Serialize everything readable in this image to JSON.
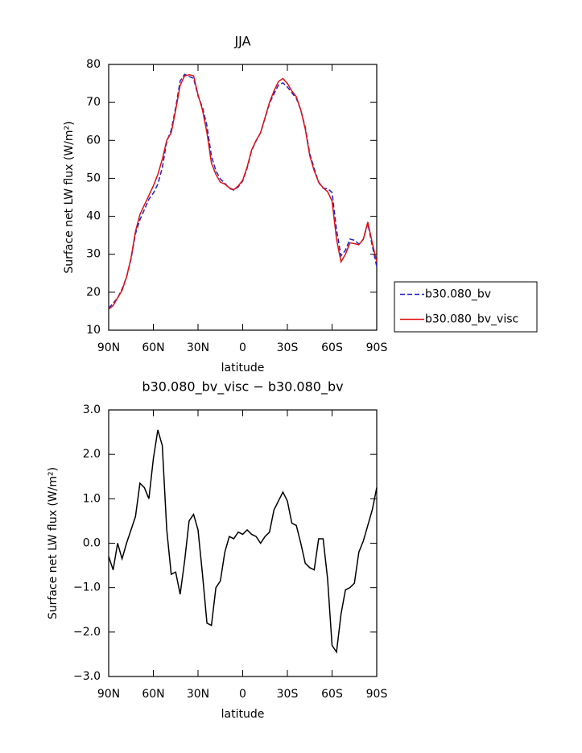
{
  "chart_data": [
    {
      "type": "line",
      "title": "JJA",
      "xlabel": "latitude",
      "ylabel": "Surface net LW flux (W/m²)",
      "x": [
        90,
        87,
        84,
        81,
        78,
        75,
        72,
        69,
        66,
        63,
        60,
        57,
        54,
        51,
        48,
        45,
        42,
        39,
        36,
        33,
        30,
        27,
        24,
        21,
        18,
        15,
        12,
        9,
        6,
        3,
        0,
        -3,
        -6,
        -9,
        -12,
        -15,
        -18,
        -21,
        -24,
        -27,
        -30,
        -33,
        -36,
        -39,
        -42,
        -45,
        -48,
        -51,
        -54,
        -57,
        -60,
        -63,
        -66,
        -69,
        -72,
        -75,
        -78,
        -81,
        -84,
        -87,
        -90
      ],
      "series": [
        {
          "name": "b30.080_bv",
          "color": "#1f1fd0",
          "linestyle": "dashed",
          "values": [
            15.8,
            17.1,
            18.5,
            20.85,
            24,
            28.7,
            35.4,
            39.15,
            41.75,
            44.5,
            46.1,
            48.45,
            52.8,
            59.7,
            62.7,
            68.65,
            75.65,
            77.4,
            76.8,
            76.35,
            71.7,
            68.7,
            63.8,
            55.85,
            52,
            49.85,
            48.7,
            47.35,
            46.9,
            47.75,
            49.3,
            52.7,
            57.3,
            59.85,
            62,
            65.85,
            69.75,
            72.25,
            74.55,
            75.15,
            74.05,
            72.55,
            71.1,
            68,
            63.45,
            56.55,
            52.6,
            48.9,
            47.4,
            47.3,
            46.3,
            36.45,
            29.6,
            31.05,
            34,
            33.7,
            32.7,
            33.95,
            38.1,
            32.25,
            26.75
          ]
        },
        {
          "name": "b30.080_bv_visc",
          "color": "#e01010",
          "linestyle": "solid",
          "values": [
            15.5,
            16.5,
            18.5,
            20.5,
            24,
            29,
            36,
            40.5,
            43,
            45.5,
            48,
            51,
            55,
            60,
            62,
            68,
            74.5,
            77,
            77.3,
            77,
            72,
            68,
            62,
            54,
            51,
            49,
            48.5,
            47.5,
            47,
            48,
            49.5,
            53,
            57.5,
            60,
            62,
            66,
            70,
            73,
            75.5,
            76.3,
            75,
            73,
            71.5,
            68,
            63,
            56,
            52,
            49,
            47.5,
            46.5,
            44,
            34,
            28,
            30,
            33,
            32.8,
            32.5,
            34,
            38.5,
            33,
            28
          ]
        }
      ],
      "xlim": [
        90,
        -90
      ],
      "xticks": [
        {
          "value": 90,
          "label": "90N"
        },
        {
          "value": 60,
          "label": "60N"
        },
        {
          "value": 30,
          "label": "30N"
        },
        0,
        {
          "value": -30,
          "label": "30S"
        },
        {
          "value": -60,
          "label": "60S"
        },
        {
          "value": -90,
          "label": "90S"
        }
      ],
      "ylim": [
        10,
        80
      ],
      "yticks": [
        10,
        20,
        30,
        40,
        50,
        60,
        70,
        80
      ],
      "legend": "outside right"
    },
    {
      "type": "line",
      "title": "b30.080_bv_visc − b30.080_bv",
      "xlabel": "latitude",
      "ylabel": "Surface net LW flux (W/m²)",
      "x": [
        90,
        87,
        84,
        81,
        78,
        75,
        72,
        69,
        66,
        63,
        60,
        57,
        54,
        51,
        48,
        45,
        42,
        39,
        36,
        33,
        30,
        27,
        24,
        21,
        18,
        15,
        12,
        9,
        6,
        3,
        0,
        -3,
        -6,
        -9,
        -12,
        -15,
        -18,
        -21,
        -24,
        -27,
        -30,
        -33,
        -36,
        -39,
        -42,
        -45,
        -48,
        -51,
        -54,
        -57,
        -60,
        -63,
        -66,
        -69,
        -72,
        -75,
        -78,
        -81,
        -84,
        -87,
        -90
      ],
      "color": "#000000",
      "values": [
        -0.3,
        -0.6,
        0,
        -0.35,
        0,
        0.3,
        0.6,
        1.35,
        1.25,
        1,
        1.9,
        2.55,
        2.2,
        0.3,
        -0.7,
        -0.65,
        -1.15,
        -0.4,
        0.5,
        0.65,
        0.3,
        -0.7,
        -1.8,
        -1.85,
        -1,
        -0.85,
        -0.2,
        0.15,
        0.1,
        0.25,
        0.2,
        0.3,
        0.2,
        0.15,
        0,
        0.15,
        0.25,
        0.75,
        0.95,
        1.15,
        0.95,
        0.45,
        0.4,
        0,
        -0.45,
        -0.55,
        -0.6,
        0.1,
        0.1,
        -0.8,
        -2.3,
        -2.45,
        -1.6,
        -1.05,
        -1,
        -0.9,
        -0.2,
        0.05,
        0.4,
        0.75,
        1.25
      ],
      "xlim": [
        90,
        -90
      ],
      "xticks": [
        {
          "value": 90,
          "label": "90N"
        },
        {
          "value": 60,
          "label": "60N"
        },
        {
          "value": 30,
          "label": "30N"
        },
        0,
        {
          "value": -30,
          "label": "30S"
        },
        {
          "value": -60,
          "label": "60S"
        },
        {
          "value": -90,
          "label": "90S"
        }
      ],
      "ylim": [
        -3,
        3
      ],
      "yticks": [
        {
          "value": -3,
          "label": "−3.0"
        },
        {
          "value": -2,
          "label": "−2.0"
        },
        {
          "value": -1,
          "label": "−1.0"
        },
        {
          "value": 0,
          "label": "0.0"
        },
        {
          "value": 1,
          "label": "1.0"
        },
        {
          "value": 2,
          "label": "2.0"
        },
        {
          "value": 3,
          "label": "3.0"
        }
      ]
    }
  ]
}
